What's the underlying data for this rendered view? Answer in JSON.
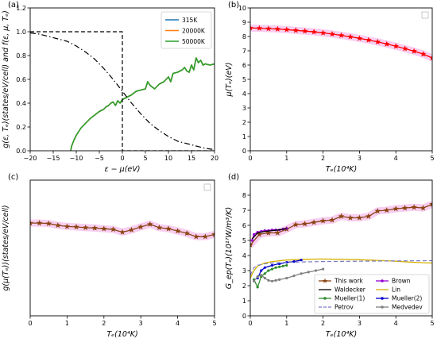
{
  "chart_data": [
    {
      "panel": "(a)",
      "type": "line",
      "xlabel": "ε − μ(eV)",
      "ylabel": "g(ε, Tₑ)(states/eV/cell) and f(ε, μ, Tₑ)",
      "xlim": [
        -20,
        20
      ],
      "ylim": [
        0,
        1.2
      ],
      "xticks": [
        -20,
        -15,
        -10,
        -5,
        0,
        5,
        10,
        15,
        20
      ],
      "yticks": [
        0.0,
        0.2,
        0.4,
        0.6,
        0.8,
        1.0,
        1.2
      ],
      "xtick_labels": [
        "−20",
        "−15",
        "−10",
        "−5",
        "0",
        "5",
        "10",
        "15",
        "20"
      ],
      "ytick_labels": [
        "0.0",
        "0.2",
        "0.4",
        "0.6",
        "0.8",
        "1.0",
        "1.2"
      ],
      "legend_position": "top-right",
      "series": [
        {
          "name": "315K",
          "color": "#1f77b4",
          "style": "solid",
          "x": [
            -11.2,
            -11,
            -10.5,
            -10,
            -9,
            -8,
            -7,
            -6,
            -5,
            -4,
            -3.5,
            -3,
            -2.5,
            -2,
            -1.5,
            -1,
            -0.5,
            0,
            1,
            2,
            3,
            4,
            5,
            5.5,
            6,
            7,
            8,
            9,
            10,
            10.5,
            11,
            12,
            13,
            13.5,
            14,
            14.5,
            15,
            15.5,
            16,
            16.5,
            17,
            17.5,
            18,
            19,
            20
          ],
          "y": [
            0.0,
            0.04,
            0.09,
            0.13,
            0.19,
            0.23,
            0.27,
            0.3,
            0.33,
            0.35,
            0.37,
            0.38,
            0.4,
            0.41,
            0.38,
            0.42,
            0.4,
            0.43,
            0.45,
            0.47,
            0.5,
            0.51,
            0.52,
            0.58,
            0.55,
            0.52,
            0.56,
            0.58,
            0.62,
            0.58,
            0.65,
            0.66,
            0.68,
            0.7,
            0.67,
            0.66,
            0.72,
            0.68,
            0.78,
            0.74,
            0.76,
            0.72,
            0.73,
            0.72,
            0.73
          ]
        },
        {
          "name": "20000K",
          "color": "#ff7f0e",
          "style": "solid",
          "x": [
            -11.2,
            -11,
            -10.5,
            -10,
            -9,
            -8,
            -7,
            -6,
            -5,
            -4,
            -3.5,
            -3,
            -2.5,
            -2,
            -1.5,
            -1,
            -0.5,
            0,
            1,
            2,
            3,
            4,
            5,
            5.5,
            6,
            7,
            8,
            9,
            10,
            10.5,
            11,
            12,
            13,
            13.5,
            14,
            14.5,
            15,
            15.5,
            16,
            16.5,
            17,
            17.5,
            18,
            19,
            20
          ],
          "y": [
            0.0,
            0.04,
            0.09,
            0.13,
            0.19,
            0.23,
            0.27,
            0.3,
            0.33,
            0.35,
            0.37,
            0.38,
            0.4,
            0.41,
            0.38,
            0.42,
            0.4,
            0.43,
            0.45,
            0.47,
            0.5,
            0.51,
            0.52,
            0.58,
            0.55,
            0.52,
            0.56,
            0.58,
            0.62,
            0.58,
            0.65,
            0.66,
            0.68,
            0.7,
            0.67,
            0.66,
            0.72,
            0.68,
            0.78,
            0.74,
            0.76,
            0.72,
            0.73,
            0.72,
            0.73
          ]
        },
        {
          "name": "50000K",
          "color": "#2ca02c",
          "style": "solid",
          "x": [
            -11.2,
            -11,
            -10.5,
            -10,
            -9,
            -8,
            -7,
            -6,
            -5,
            -4,
            -3.5,
            -3,
            -2.5,
            -2,
            -1.5,
            -1,
            -0.5,
            0,
            1,
            2,
            3,
            4,
            5,
            5.5,
            6,
            7,
            8,
            9,
            10,
            10.5,
            11,
            12,
            13,
            13.5,
            14,
            14.5,
            15,
            15.5,
            16,
            16.5,
            17,
            17.5,
            18,
            19,
            20
          ],
          "y": [
            0.0,
            0.04,
            0.09,
            0.13,
            0.19,
            0.23,
            0.27,
            0.3,
            0.33,
            0.35,
            0.37,
            0.38,
            0.4,
            0.41,
            0.38,
            0.42,
            0.4,
            0.43,
            0.45,
            0.47,
            0.5,
            0.51,
            0.52,
            0.58,
            0.55,
            0.52,
            0.56,
            0.58,
            0.62,
            0.58,
            0.65,
            0.66,
            0.68,
            0.7,
            0.67,
            0.66,
            0.72,
            0.68,
            0.78,
            0.74,
            0.76,
            0.72,
            0.73,
            0.72,
            0.73
          ]
        },
        {
          "color": "#000000",
          "style": "dashed",
          "x": [
            -20,
            0,
            0,
            20
          ],
          "y": [
            1.0,
            1.0,
            0.0,
            0.0
          ]
        },
        {
          "color": "#000000",
          "style": "dashdot",
          "x": [
            -20,
            -18,
            -16,
            -14,
            -12,
            -10,
            -8,
            -6,
            -4,
            -2,
            0,
            2,
            4,
            6,
            8,
            10,
            12,
            14,
            16,
            18,
            20
          ],
          "y": [
            0.99,
            0.98,
            0.96,
            0.94,
            0.92,
            0.88,
            0.83,
            0.77,
            0.69,
            0.6,
            0.5,
            0.4,
            0.31,
            0.23,
            0.17,
            0.12,
            0.08,
            0.06,
            0.04,
            0.02,
            0.01
          ]
        }
      ]
    },
    {
      "panel": "(b)",
      "type": "line",
      "xlabel": "Tₑ(10⁴K)",
      "ylabel": "μ(Tₑ)(eV)",
      "xlim": [
        0,
        5
      ],
      "ylim": [
        0,
        10
      ],
      "xticks": [
        0,
        1,
        2,
        3,
        4,
        5
      ],
      "yticks": [
        0,
        1,
        2,
        3,
        4,
        5,
        6,
        7,
        8,
        9,
        10
      ],
      "xtick_labels": [
        "0",
        "1",
        "2",
        "3",
        "4",
        "5"
      ],
      "ytick_labels": [
        "0",
        "1",
        "2",
        "3",
        "4",
        "5",
        "6",
        "7",
        "8",
        "9",
        "10"
      ],
      "legend_position": "top-right",
      "series": [
        {
          "color": "#ff0000",
          "marker": "star",
          "x": [
            0,
            0.25,
            0.5,
            0.75,
            1.0,
            1.25,
            1.5,
            1.75,
            2.0,
            2.25,
            2.5,
            2.75,
            3.0,
            3.25,
            3.5,
            3.75,
            4.0,
            4.25,
            4.5,
            4.75,
            5.0
          ],
          "y": [
            8.6,
            8.58,
            8.55,
            8.52,
            8.48,
            8.43,
            8.38,
            8.32,
            8.25,
            8.17,
            8.08,
            7.98,
            7.87,
            7.75,
            7.62,
            7.47,
            7.32,
            7.15,
            6.97,
            6.77,
            6.5
          ]
        }
      ]
    },
    {
      "panel": "(c)",
      "type": "line",
      "xlabel": "Tₑ(10⁴K)",
      "ylabel": "g(μ(Tₑ))(states/eV/cell)",
      "xlim": [
        0,
        5
      ],
      "ylim": [
        0,
        0.6
      ],
      "xticks": [
        0,
        1,
        2,
        3,
        4,
        5
      ],
      "yticks": [],
      "xtick_labels": [
        "0",
        "1",
        "2",
        "3",
        "4",
        "5"
      ],
      "ytick_labels": [],
      "legend_position": "top-right",
      "series": [
        {
          "color": "#8b4513",
          "marker": "star",
          "x": [
            0,
            0.25,
            0.5,
            0.75,
            1.0,
            1.25,
            1.5,
            1.75,
            2.0,
            2.25,
            2.5,
            2.75,
            3.0,
            3.25,
            3.5,
            3.75,
            4.0,
            4.25,
            4.5,
            4.75,
            5.0
          ],
          "y": [
            0.41,
            0.41,
            0.408,
            0.4,
            0.395,
            0.393,
            0.39,
            0.388,
            0.385,
            0.382,
            0.37,
            0.38,
            0.393,
            0.405,
            0.39,
            0.385,
            0.375,
            0.365,
            0.35,
            0.35,
            0.36
          ]
        }
      ]
    },
    {
      "panel": "(d)",
      "type": "line",
      "xlabel": "Tₑ(10⁴K)",
      "ylabel": "G_ep(Tₑ)(10¹⁷W/m³/K)",
      "xlim": [
        0,
        5
      ],
      "ylim": [
        0,
        9
      ],
      "xticks": [
        0,
        1,
        2,
        3,
        4,
        5
      ],
      "yticks": [
        0,
        1,
        2,
        3,
        4,
        5,
        6,
        7,
        8
      ],
      "xtick_labels": [
        "0",
        "1",
        "2",
        "3",
        "4",
        "5"
      ],
      "ytick_labels": [
        "0",
        "1",
        "2",
        "3",
        "4",
        "5",
        "6",
        "7",
        "8"
      ],
      "legend_position": "bottom-right",
      "series": [
        {
          "name": "This work",
          "color": "#8b4513",
          "marker": "star",
          "x": [
            0,
            0.25,
            0.5,
            0.75,
            1.0,
            1.25,
            1.5,
            1.75,
            2.0,
            2.25,
            2.5,
            2.75,
            3.0,
            3.25,
            3.5,
            3.75,
            4.0,
            4.25,
            4.5,
            4.75,
            5.0
          ],
          "y": [
            4.7,
            5.4,
            5.5,
            5.5,
            5.75,
            6.05,
            6.1,
            6.2,
            6.3,
            6.35,
            6.6,
            6.5,
            6.5,
            6.6,
            6.95,
            7.0,
            7.1,
            7.15,
            7.2,
            7.15,
            7.4
          ]
        },
        {
          "name": "Brown",
          "color": "#9400d3",
          "marker": "dot",
          "x": [
            0.05,
            0.1,
            0.2,
            0.3,
            0.4,
            0.5,
            0.6,
            0.7,
            0.8,
            0.9,
            1.0
          ],
          "y": [
            5.0,
            5.4,
            5.55,
            5.6,
            5.65,
            5.65,
            5.7,
            5.7,
            5.7,
            5.75,
            5.8
          ]
        },
        {
          "name": "Waldecker",
          "color": "#000000",
          "x": [
            0.05,
            0.2,
            0.4,
            0.6,
            0.8,
            1.0
          ],
          "y": [
            5.1,
            5.5,
            5.6,
            5.65,
            5.7,
            5.8
          ]
        },
        {
          "name": "Lin",
          "color": "#d4b000",
          "x": [
            0,
            0.1,
            0.2,
            0.4,
            0.6,
            1.0,
            1.5,
            2.0,
            2.5,
            3.0,
            3.5,
            4.0,
            4.5,
            5.0
          ],
          "y": [
            2.5,
            3.0,
            3.3,
            3.5,
            3.6,
            3.7,
            3.75,
            3.77,
            3.75,
            3.72,
            3.68,
            3.62,
            3.55,
            3.5
          ]
        },
        {
          "name": "Mueller(1)",
          "color": "#2e8b2e",
          "marker": "dot",
          "x": [
            0.1,
            0.2,
            0.3,
            0.4,
            0.5,
            0.6,
            0.7,
            0.8,
            0.9,
            1.0
          ],
          "y": [
            2.4,
            1.9,
            2.6,
            2.8,
            3.0,
            3.1,
            3.2,
            3.25,
            3.3,
            3.35
          ]
        },
        {
          "name": "Mueller(2)",
          "color": "#0000cd",
          "marker": "dot",
          "x": [
            0.2,
            0.3,
            0.4,
            0.6,
            0.8,
            1.0,
            1.2,
            1.4
          ],
          "y": [
            2.5,
            3.0,
            3.2,
            3.35,
            3.45,
            3.55,
            3.6,
            3.7
          ]
        },
        {
          "name": "Petrov",
          "color": "#7b7bc8",
          "style": "dashed",
          "x": [
            0,
            0.1,
            0.2,
            0.4,
            0.6,
            1.0,
            1.5,
            2.0,
            3.0,
            4.0,
            5.0
          ],
          "y": [
            2.7,
            3.2,
            3.35,
            3.45,
            3.5,
            3.55,
            3.58,
            3.6,
            3.62,
            3.64,
            3.66
          ]
        },
        {
          "name": "Medvedev",
          "color": "#808080",
          "marker": "dot",
          "x": [
            0.1,
            0.2,
            0.3,
            0.4,
            0.5,
            0.6,
            0.7,
            0.8,
            1.0,
            1.2,
            1.4,
            1.6,
            1.8,
            2.0
          ],
          "y": [
            2.3,
            2.6,
            2.7,
            2.5,
            2.35,
            2.3,
            2.35,
            2.4,
            2.5,
            2.65,
            2.8,
            2.9,
            3.0,
            3.1
          ]
        }
      ]
    }
  ]
}
